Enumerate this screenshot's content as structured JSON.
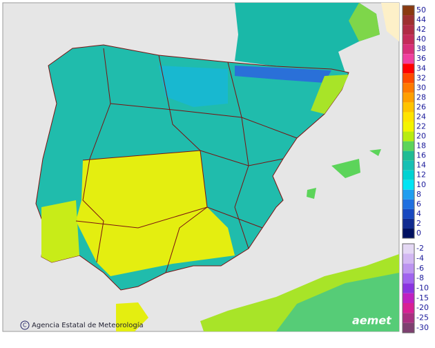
{
  "legend": {
    "upper": [
      {
        "label": "50",
        "color": "#8a3a10"
      },
      {
        "label": "44",
        "color": "#9e3030"
      },
      {
        "label": "42",
        "color": "#b02c45"
      },
      {
        "label": "40",
        "color": "#c42c5a"
      },
      {
        "label": "38",
        "color": "#d8307a"
      },
      {
        "label": "36",
        "color": "#f040a0"
      },
      {
        "label": "34",
        "color": "#ff0000"
      },
      {
        "label": "32",
        "color": "#ff4a00"
      },
      {
        "label": "30",
        "color": "#ff7a00"
      },
      {
        "label": "28",
        "color": "#ffa000"
      },
      {
        "label": "26",
        "color": "#ffc400"
      },
      {
        "label": "24",
        "color": "#ffe400"
      },
      {
        "label": "22",
        "color": "#f4f400"
      },
      {
        "label": "20",
        "color": "#b8ec10"
      },
      {
        "label": "18",
        "color": "#5cd45a"
      },
      {
        "label": "16",
        "color": "#20bc94"
      },
      {
        "label": "14",
        "color": "#18c0b4"
      },
      {
        "label": "12",
        "color": "#00d2d2"
      },
      {
        "label": "10",
        "color": "#00e4f4"
      },
      {
        "label": "8",
        "color": "#209ef0"
      },
      {
        "label": "6",
        "color": "#2070e0"
      },
      {
        "label": "4",
        "color": "#1848c0"
      },
      {
        "label": "2",
        "color": "#102a90"
      },
      {
        "label": "0",
        "color": "#001060"
      }
    ],
    "lower": [
      {
        "label": "-2",
        "color": "#e4d8f4"
      },
      {
        "label": "-4",
        "color": "#d2b8f2"
      },
      {
        "label": "-6",
        "color": "#bc94f0"
      },
      {
        "label": "-8",
        "color": "#a064ee"
      },
      {
        "label": "-10",
        "color": "#8a34e0"
      },
      {
        "label": "-15",
        "color": "#c020c0"
      },
      {
        "label": "-20",
        "color": "#d82094"
      },
      {
        "label": "-25",
        "color": "#a83080"
      },
      {
        "label": "-30",
        "color": "#7e4070"
      }
    ]
  },
  "credit": "Agencia Estatal de Meteorología",
  "logo": "aemet"
}
